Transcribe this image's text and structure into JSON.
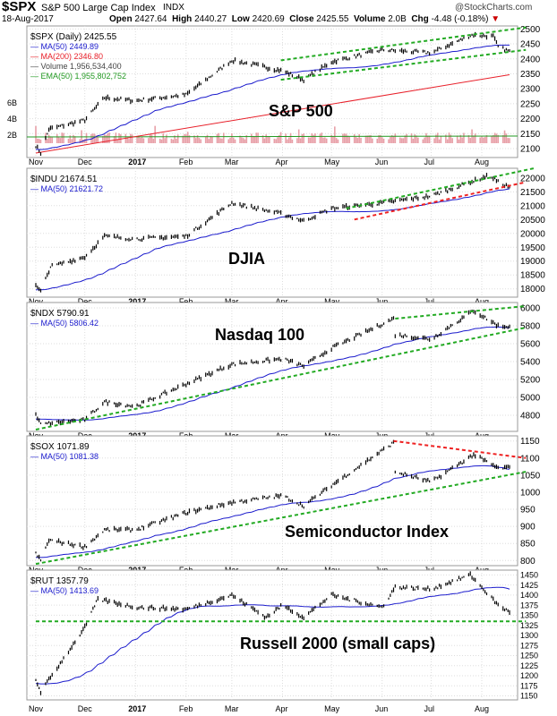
{
  "header": {
    "symbol": "$SPX",
    "name": "S&P 500 Large Cap Index",
    "exchange": "INDX",
    "date": "18-Aug-2017",
    "open_label": "Open",
    "open": "2427.64",
    "high_label": "High",
    "high": "2440.27",
    "low_label": "Low",
    "low": "2420.69",
    "close_label": "Close",
    "close": "2425.55",
    "volume_label": "Volume",
    "volume": "2.0B",
    "chg_label": "Chg",
    "chg": "-4.48 (-0.18%)",
    "brand": "@StockCharts.com"
  },
  "colors": {
    "price": "#000000",
    "ma50": "#1a1acc",
    "ma200": "#e8202a",
    "trend_green": "#22aa22",
    "trend_red": "#ee2222",
    "volume": "#e8a0a8",
    "ema": "#229922"
  },
  "x_ticks": [
    "Nov",
    "Dec",
    "2017",
    "Feb",
    "Mar",
    "Apr",
    "May",
    "Jun",
    "Jul",
    "Aug"
  ],
  "x_tick_days": [
    0,
    30,
    61,
    92,
    120,
    151,
    181,
    212,
    242,
    273
  ],
  "chart_data": [
    {
      "type": "line",
      "title": "S&P 500",
      "legend": [
        "$SPX (Daily) 2425.55",
        "MA(50) 2449.89",
        "MA(200) 2346.80",
        "Volume 1,956,534,400",
        "EMA(50) 1,955,802,752"
      ],
      "ylim": [
        2070,
        2510
      ],
      "yticks": [
        2500,
        2450,
        2400,
        2350,
        2300,
        2250,
        2200,
        2150,
        2100
      ],
      "vol_ticks": [
        "6B",
        "4B",
        "2B"
      ],
      "anchors": [
        [
          0,
          2110
        ],
        [
          3,
          2085
        ],
        [
          8,
          2165
        ],
        [
          30,
          2195
        ],
        [
          42,
          2270
        ],
        [
          61,
          2260
        ],
        [
          92,
          2280
        ],
        [
          120,
          2395
        ],
        [
          134,
          2380
        ],
        [
          151,
          2360
        ],
        [
          164,
          2330
        ],
        [
          181,
          2390
        ],
        [
          212,
          2430
        ],
        [
          242,
          2420
        ],
        [
          267,
          2480
        ],
        [
          280,
          2475
        ],
        [
          283,
          2440
        ],
        [
          290,
          2425
        ]
      ],
      "ma200": [
        [
          0,
          2085
        ],
        [
          290,
          2347
        ]
      ],
      "trends": [
        {
          "c": "green",
          "p": [
            [
              150,
              2395
            ],
            [
              300,
              2505
            ]
          ]
        },
        {
          "c": "green",
          "p": [
            [
              150,
              2330
            ],
            [
              300,
              2430
            ]
          ]
        }
      ]
    },
    {
      "type": "line",
      "title": "DJIA",
      "legend": [
        "$INDU 21674.51",
        "MA(50) 21621.72"
      ],
      "ylim": [
        17700,
        22350
      ],
      "yticks": [
        22000,
        21500,
        21000,
        20500,
        20000,
        19500,
        19000,
        18500,
        18000
      ],
      "anchors": [
        [
          0,
          18100
        ],
        [
          3,
          17900
        ],
        [
          9,
          18800
        ],
        [
          30,
          19150
        ],
        [
          42,
          19900
        ],
        [
          61,
          19800
        ],
        [
          92,
          19900
        ],
        [
          120,
          21100
        ],
        [
          151,
          20700
        ],
        [
          164,
          20450
        ],
        [
          181,
          20900
        ],
        [
          212,
          21100
        ],
        [
          242,
          21350
        ],
        [
          278,
          22100
        ],
        [
          283,
          21850
        ],
        [
          290,
          21674
        ]
      ],
      "trends": [
        {
          "c": "green",
          "p": [
            [
              190,
              20900
            ],
            [
              305,
              22350
            ]
          ]
        },
        {
          "c": "red",
          "p": [
            [
              195,
              20500
            ],
            [
              300,
              21850
            ]
          ]
        }
      ]
    },
    {
      "type": "line",
      "title": "Nasdaq 100",
      "legend": [
        "$NDX 5790.91",
        "MA(50) 5806.42"
      ],
      "ylim": [
        4620,
        6060
      ],
      "yticks": [
        6000,
        5800,
        5600,
        5400,
        5200,
        5000,
        4800
      ],
      "anchors": [
        [
          0,
          4800
        ],
        [
          3,
          4700
        ],
        [
          30,
          4750
        ],
        [
          42,
          4950
        ],
        [
          61,
          4900
        ],
        [
          92,
          5150
        ],
        [
          120,
          5370
        ],
        [
          151,
          5430
        ],
        [
          164,
          5350
        ],
        [
          181,
          5550
        ],
        [
          219,
          5880
        ],
        [
          220,
          5700
        ],
        [
          242,
          5650
        ],
        [
          268,
          5970
        ],
        [
          283,
          5800
        ],
        [
          290,
          5790
        ]
      ],
      "trends": [
        {
          "c": "green",
          "p": [
            [
              220,
              5880
            ],
            [
              300,
              6020
            ]
          ]
        },
        {
          "c": "green",
          "p": [
            [
              0,
              4640
            ],
            [
              300,
              5780
            ]
          ]
        }
      ]
    },
    {
      "type": "line",
      "title": "Semiconductor Index",
      "legend": [
        "$SOX 1071.89",
        "MA(50) 1081.38"
      ],
      "ylim": [
        785,
        1165
      ],
      "yticks": [
        1150,
        1100,
        1050,
        1000,
        950,
        900,
        850,
        800
      ],
      "anchors": [
        [
          0,
          820
        ],
        [
          3,
          800
        ],
        [
          8,
          860
        ],
        [
          30,
          840
        ],
        [
          42,
          890
        ],
        [
          61,
          890
        ],
        [
          92,
          940
        ],
        [
          120,
          970
        ],
        [
          151,
          990
        ],
        [
          164,
          960
        ],
        [
          181,
          1020
        ],
        [
          219,
          1145
        ],
        [
          220,
          1060
        ],
        [
          242,
          1030
        ],
        [
          268,
          1110
        ],
        [
          283,
          1070
        ],
        [
          290,
          1072
        ]
      ],
      "trends": [
        {
          "c": "red",
          "p": [
            [
              219,
              1150
            ],
            [
              300,
              1100
            ]
          ]
        },
        {
          "c": "green",
          "p": [
            [
              0,
              790
            ],
            [
              300,
              1060
            ]
          ]
        }
      ]
    },
    {
      "type": "line",
      "title": "Russell 2000 (small caps)",
      "legend": [
        "$RUT 1357.79",
        "MA(50) 1413.69"
      ],
      "ylim": [
        1140,
        1462
      ],
      "yticks": [
        1450,
        1425,
        1400,
        1375,
        1350,
        1325,
        1300,
        1275,
        1250,
        1225,
        1200,
        1175,
        1150
      ],
      "anchors": [
        [
          0,
          1190
        ],
        [
          3,
          1160
        ],
        [
          30,
          1320
        ],
        [
          38,
          1390
        ],
        [
          61,
          1370
        ],
        [
          92,
          1365
        ],
        [
          120,
          1400
        ],
        [
          141,
          1345
        ],
        [
          151,
          1375
        ],
        [
          164,
          1345
        ],
        [
          181,
          1400
        ],
        [
          212,
          1370
        ],
        [
          220,
          1420
        ],
        [
          242,
          1415
        ],
        [
          266,
          1450
        ],
        [
          283,
          1375
        ],
        [
          290,
          1358
        ]
      ],
      "trends": [
        {
          "c": "green",
          "p": [
            [
              0,
              1335
            ],
            [
              300,
              1335
            ]
          ]
        }
      ]
    }
  ]
}
